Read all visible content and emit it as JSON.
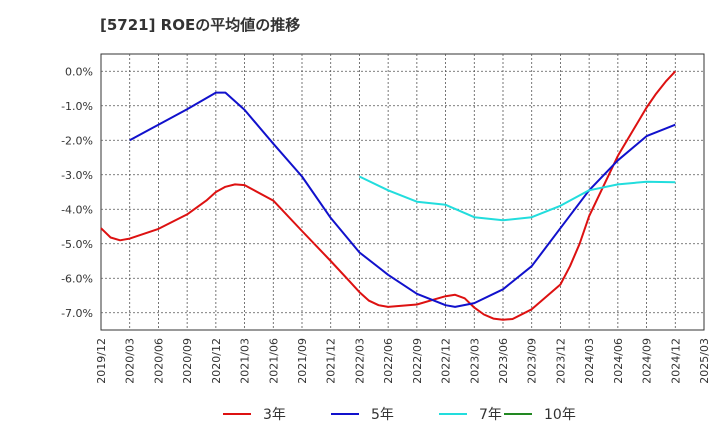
{
  "chart_data": {
    "type": "line",
    "title": "[5721]  ROEの平均値の推移",
    "xlabel": "",
    "ylabel": "",
    "x_ticks": [
      "2019/12",
      "2020/03",
      "2020/06",
      "2020/09",
      "2020/12",
      "2021/03",
      "2021/06",
      "2021/09",
      "2021/12",
      "2022/03",
      "2022/06",
      "2022/09",
      "2022/12",
      "2023/03",
      "2023/06",
      "2023/09",
      "2023/12",
      "2024/03",
      "2024/06",
      "2024/09",
      "2024/12",
      "2025/03"
    ],
    "y_ticks": [
      "0.0%",
      "-1.0%",
      "-2.0%",
      "-3.0%",
      "-4.0%",
      "-5.0%",
      "-6.0%",
      "-7.0%"
    ],
    "ylim": [
      -7.5,
      0.5
    ],
    "grid": true,
    "legend_position": "bottom",
    "series": [
      {
        "name": "3年",
        "color": "#dd1111",
        "x": [
          "2019/12",
          "2020/01",
          "2020/02",
          "2020/03",
          "2020/06",
          "2020/09",
          "2020/11",
          "2020/12",
          "2021/01",
          "2021/02",
          "2021/03",
          "2021/04",
          "2021/06",
          "2021/09",
          "2021/12",
          "2022/02",
          "2022/03",
          "2022/04",
          "2022/05",
          "2022/06",
          "2022/09",
          "2022/11",
          "2022/12",
          "2023/01",
          "2023/02",
          "2023/03",
          "2023/04",
          "2023/05",
          "2023/06",
          "2023/07",
          "2023/09",
          "2023/12",
          "2024/01",
          "2024/02",
          "2024/03",
          "2024/06",
          "2024/09",
          "2024/10",
          "2024/11",
          "2024/12"
        ],
        "values": [
          -4.55,
          -4.82,
          -4.9,
          -4.85,
          -4.57,
          -4.15,
          -3.75,
          -3.5,
          -3.35,
          -3.28,
          -3.3,
          -3.45,
          -3.75,
          -4.63,
          -5.5,
          -6.1,
          -6.4,
          -6.65,
          -6.78,
          -6.83,
          -6.76,
          -6.6,
          -6.52,
          -6.48,
          -6.58,
          -6.85,
          -7.05,
          -7.17,
          -7.2,
          -7.18,
          -6.9,
          -6.18,
          -5.65,
          -5.0,
          -4.2,
          -2.45,
          -1.05,
          -0.65,
          -0.3,
          0.0
        ]
      },
      {
        "name": "5年",
        "color": "#1111cc",
        "x": [
          "2020/03",
          "2020/06",
          "2020/09",
          "2020/12",
          "2021/01",
          "2021/03",
          "2021/06",
          "2021/09",
          "2021/12",
          "2022/03",
          "2022/06",
          "2022/09",
          "2022/12",
          "2023/01",
          "2023/03",
          "2023/06",
          "2023/09",
          "2023/12",
          "2024/03",
          "2024/06",
          "2024/09",
          "2024/12"
        ],
        "values": [
          -2.0,
          -1.55,
          -1.1,
          -0.62,
          -0.62,
          -1.12,
          -2.1,
          -3.05,
          -4.25,
          -5.25,
          -5.9,
          -6.45,
          -6.78,
          -6.83,
          -6.72,
          -6.32,
          -5.65,
          -4.55,
          -3.45,
          -2.58,
          -1.88,
          -1.55
        ]
      },
      {
        "name": "7年",
        "color": "#22dddd",
        "x": [
          "2022/03",
          "2022/06",
          "2022/09",
          "2022/12",
          "2023/03",
          "2023/06",
          "2023/09",
          "2023/12",
          "2024/03",
          "2024/06",
          "2024/09",
          "2024/12"
        ],
        "values": [
          -3.05,
          -3.45,
          -3.78,
          -3.87,
          -4.23,
          -4.32,
          -4.23,
          -3.9,
          -3.45,
          -3.28,
          -3.2,
          -3.22
        ]
      },
      {
        "name": "10年",
        "color": "#228822",
        "x": [],
        "values": []
      }
    ]
  }
}
